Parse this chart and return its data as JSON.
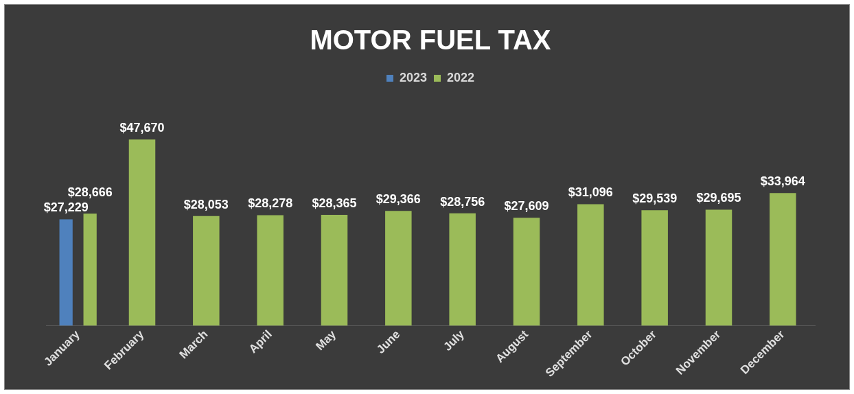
{
  "chart_data": {
    "type": "bar",
    "title": "MOTOR FUEL TAX",
    "categories": [
      "January",
      "February",
      "March",
      "April",
      "May",
      "June",
      "July",
      "August",
      "September",
      "October",
      "November",
      "December"
    ],
    "series": [
      {
        "name": "2023",
        "color": "#4f81bd",
        "values": [
          27229,
          null,
          null,
          null,
          null,
          null,
          null,
          null,
          null,
          null,
          null,
          null
        ],
        "value_labels": [
          "$27,229",
          null,
          null,
          null,
          null,
          null,
          null,
          null,
          null,
          null,
          null,
          null
        ]
      },
      {
        "name": "2022",
        "color": "#9bbb59",
        "values": [
          28666,
          47670,
          28053,
          28278,
          28365,
          29366,
          28756,
          27609,
          31096,
          29539,
          29695,
          33964
        ],
        "value_labels": [
          "$28,666",
          "$47,670",
          "$28,053",
          "$28,278",
          "$28,365",
          "$29,366",
          "$28,756",
          "$27,609",
          "$31,096",
          "$29,539",
          "$29,695",
          "$33,964"
        ]
      }
    ],
    "legend": "top",
    "grid": false
  }
}
